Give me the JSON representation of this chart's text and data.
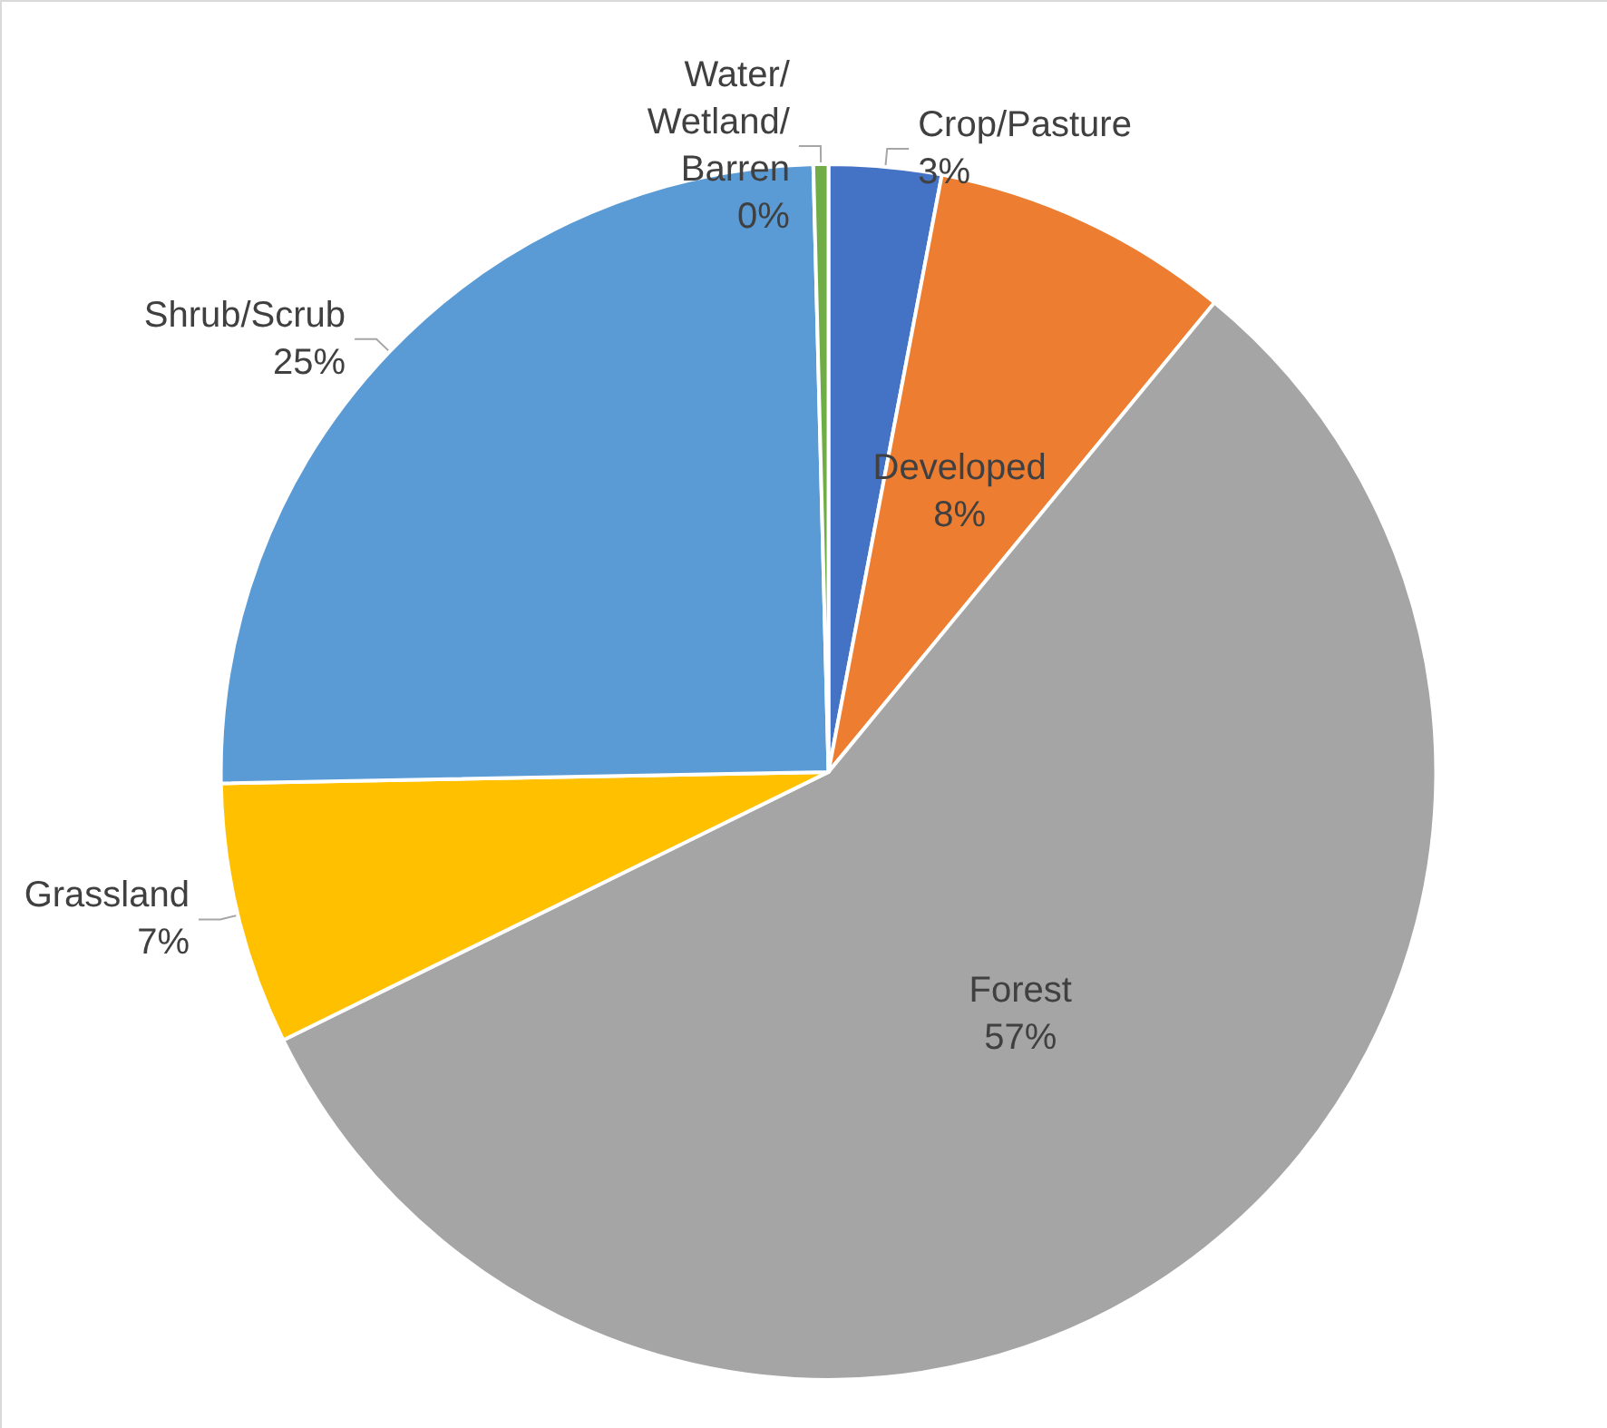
{
  "chart_data": {
    "type": "pie",
    "categories": [
      "Crop/Pasture",
      "Developed",
      "Forest",
      "Grassland",
      "Shrub/Scrub",
      "Water/Wetland/Barren"
    ],
    "values": [
      3,
      8,
      57,
      7,
      25,
      0.4
    ],
    "value_labels": [
      "3%",
      "8%",
      "57%",
      "7%",
      "25%",
      "0%"
    ],
    "colors": [
      "#4472c4",
      "#ed7d31",
      "#a5a5a5",
      "#ffc000",
      "#5b9bd5",
      "#70ad47"
    ],
    "legend": false
  }
}
